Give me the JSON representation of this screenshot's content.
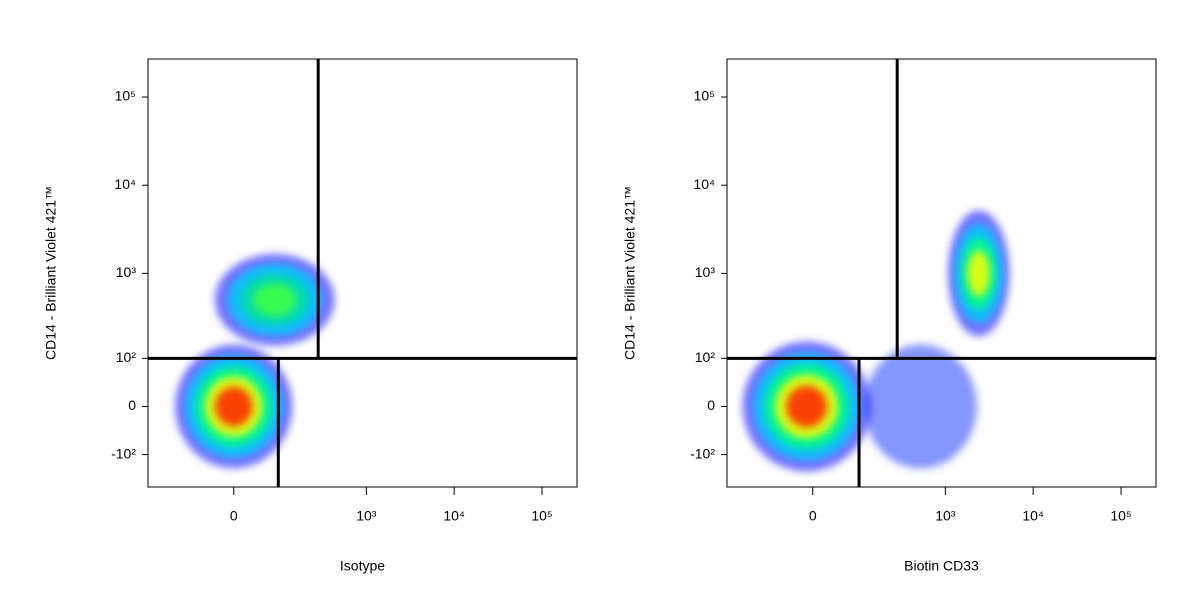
{
  "chart_data": [
    {
      "type": "scatter",
      "xlabel": "Isotype",
      "ylabel": "CD14 - Brilliant Violet 421™",
      "xscale": "biexponential",
      "yscale": "biexponential",
      "xlim": [
        -290,
        250000
      ],
      "ylim": [
        -250,
        270000
      ],
      "xticks": [
        0,
        {
          "value": 1000,
          "label": "10³"
        },
        {
          "value": 10000,
          "label": "10⁴"
        },
        {
          "value": 100000,
          "label": "10⁵"
        }
      ],
      "yticks": [
        {
          "value": -100,
          "label": "-10²"
        },
        0,
        {
          "value": 100,
          "label": "10²"
        },
        {
          "value": 1000,
          "label": "10³"
        },
        {
          "value": 10000,
          "label": "10⁴"
        },
        {
          "value": 100000,
          "label": "10⁵"
        }
      ],
      "gates": {
        "y": 100,
        "x_upper": 280,
        "x_lower": 90
      },
      "populations": [
        {
          "x": 0,
          "y": 0,
          "xrange": [
            -170,
            110
          ],
          "yrange": [
            -200,
            110
          ],
          "colors": [
            "#0000ff",
            "#00c8ff",
            "#00ff80",
            "#ffff00",
            "#ff2000"
          ]
        },
        {
          "x": 80,
          "y": 500,
          "xrange": [
            -60,
            300
          ],
          "yrange": [
            130,
            1500
          ],
          "colors": [
            "#0000ff",
            "#00c8ff",
            "#00e0a0",
            "#40ff40"
          ]
        }
      ]
    },
    {
      "type": "scatter",
      "xlabel": "Biotin CD33",
      "ylabel": "CD14 - Brilliant Violet 421™",
      "xscale": "biexponential",
      "yscale": "biexponential",
      "xlim": [
        -290,
        250000
      ],
      "ylim": [
        -250,
        270000
      ],
      "xticks": [
        0,
        {
          "value": 1000,
          "label": "10³"
        },
        {
          "value": 10000,
          "label": "10⁴"
        },
        {
          "value": 100000,
          "label": "10⁵"
        }
      ],
      "yticks": [
        {
          "value": -100,
          "label": "-10²"
        },
        0,
        {
          "value": 100,
          "label": "10²"
        },
        {
          "value": 1000,
          "label": "10³"
        },
        {
          "value": 10000,
          "label": "10⁴"
        },
        {
          "value": 100000,
          "label": "10⁵"
        }
      ],
      "gates": {
        "y": 100,
        "x_upper": 280,
        "x_lower": 95
      },
      "populations": [
        {
          "x": 520,
          "y": 0,
          "xrange": [
            150,
            3000
          ],
          "yrange": [
            -150,
            150
          ],
          "colors": [
            "#2040ff"
          ]
        },
        {
          "x": -10,
          "y": 0,
          "xrange": [
            -230,
            110
          ],
          "yrange": [
            -220,
            120
          ],
          "colors": [
            "#0000ff",
            "#00c8ff",
            "#00ff80",
            "#ffff00",
            "#ff2000"
          ]
        },
        {
          "x": 2400,
          "y": 1000,
          "xrange": [
            1000,
            5000
          ],
          "yrange": [
            200,
            5500
          ],
          "colors": [
            "#0000ff",
            "#00c8ff",
            "#00ff80",
            "#ffff00"
          ]
        }
      ]
    }
  ]
}
